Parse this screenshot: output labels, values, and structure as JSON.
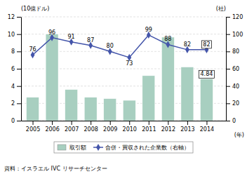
{
  "chart_data": {
    "type": "bar",
    "x": [
      2005,
      2006,
      2007,
      2008,
      2009,
      2010,
      2011,
      2012,
      2013,
      2014
    ],
    "xlim": [
      2004.4,
      2015.0
    ],
    "xticks": [
      2005,
      2006,
      2007,
      2008,
      2009,
      2010,
      2011,
      2012,
      2013,
      2014
    ],
    "xlabel": "(年)",
    "ylabel": "(10億ドル)",
    "ylim": [
      0,
      12
    ],
    "yticks": [
      0,
      2,
      4,
      6,
      8,
      10,
      12
    ],
    "y2label": "(社)",
    "y2lim": [
      0,
      120
    ],
    "y2ticks": [
      0,
      20,
      40,
      60,
      80,
      100,
      120
    ],
    "grid": true,
    "legend": "bottom",
    "series": [
      {
        "name": "取引額",
        "type": "bar",
        "color": "#a8cfc0",
        "values": [
          2.7,
          10.0,
          3.6,
          2.7,
          2.55,
          2.35,
          5.2,
          9.65,
          6.2,
          4.84
        ],
        "value_labels": [
          null,
          null,
          null,
          null,
          null,
          null,
          null,
          null,
          null,
          "4.84"
        ]
      },
      {
        "name": "合併・買収された企業数（右軸）",
        "type": "line",
        "axis": "y2",
        "color": "#4455aa",
        "marker": "diamond",
        "data_labels": true,
        "values": [
          76,
          96,
          91,
          87,
          80,
          73,
          99,
          88,
          82,
          82
        ]
      }
    ],
    "source": "資料：イスラエル IVC リサーチセンター"
  }
}
